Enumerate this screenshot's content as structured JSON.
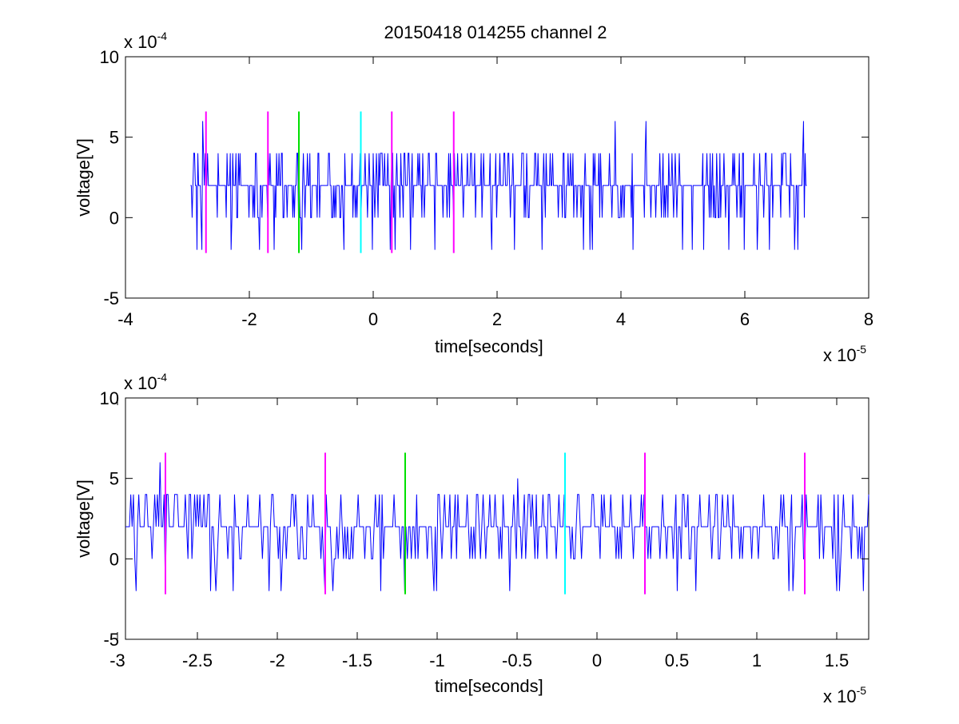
{
  "figure_title": "20150418 014255 channel 2",
  "colors": {
    "signal": "#0000ff",
    "magenta_marker": "#ff00ff",
    "green_marker": "#00e000",
    "cyan_marker": "#00ffff",
    "axes": "#000000",
    "background": "#ffffff"
  },
  "chart_data": [
    {
      "type": "line",
      "title": "20150418 014255 channel 2",
      "xlabel": "time[seconds]",
      "ylabel": "voltage[V]",
      "x_multiplier": "x 10",
      "x_multiplier_exp": "-5",
      "y_multiplier": "x 10",
      "y_multiplier_exp": "-4",
      "xlim": [
        -4,
        8
      ],
      "ylim": [
        -5,
        10
      ],
      "xticks": [
        -4,
        -2,
        0,
        2,
        4,
        6,
        8
      ],
      "xtick_labels": [
        "-4",
        "-2",
        "0",
        "2",
        "4",
        "6",
        "8"
      ],
      "yticks": [
        -5,
        0,
        5,
        10
      ],
      "ytick_labels": [
        "-5",
        "0",
        "5",
        "10"
      ],
      "grid": false,
      "signal": {
        "x_start": -2.95,
        "x_end": 7.0,
        "y_levels": [
          -2,
          0,
          2,
          4,
          6
        ],
        "typical_level": 2,
        "spikes": [
          {
            "x": -2.75,
            "y": 6
          },
          {
            "x": 3.9,
            "y": 6
          },
          {
            "x": 4.4,
            "y": 6
          },
          {
            "x": 6.95,
            "y": 6
          },
          {
            "x": -2.85,
            "y": -2
          },
          {
            "x": -2.3,
            "y": -2
          },
          {
            "x": -1.6,
            "y": -2
          },
          {
            "x": -1.15,
            "y": -2
          },
          {
            "x": 0.6,
            "y": -2
          },
          {
            "x": 1.0,
            "y": -2
          },
          {
            "x": 3.4,
            "y": -2
          },
          {
            "x": 4.2,
            "y": -2
          },
          {
            "x": 5.0,
            "y": -2
          },
          {
            "x": 6.2,
            "y": -2
          },
          {
            "x": 6.4,
            "y": -2
          },
          {
            "x": 6.8,
            "y": -2
          }
        ]
      },
      "markers": [
        {
          "x": -2.7,
          "color": "magenta"
        },
        {
          "x": -1.7,
          "color": "magenta"
        },
        {
          "x": -1.2,
          "color": "green"
        },
        {
          "x": -0.2,
          "color": "cyan"
        },
        {
          "x": 0.3,
          "color": "magenta"
        },
        {
          "x": 1.3,
          "color": "magenta"
        }
      ],
      "marker_range": [
        -2.2,
        6.6
      ]
    },
    {
      "type": "line",
      "xlabel": "time[seconds]",
      "ylabel": "voltage[V]",
      "x_multiplier": "x 10",
      "x_multiplier_exp": "-5",
      "y_multiplier": "x 10",
      "y_multiplier_exp": "-4",
      "xlim": [
        -2.95,
        1.7
      ],
      "ylim": [
        -5,
        10
      ],
      "xticks": [
        -3,
        -2.5,
        -2,
        -1.5,
        -1,
        -0.5,
        0,
        0.5,
        1,
        1.5
      ],
      "xtick_labels": [
        "-3",
        "-2.5",
        "-2",
        "-1.5",
        "-1",
        "-0.5",
        "0",
        "0.5",
        "1",
        "1.5"
      ],
      "yticks": [
        -5,
        0,
        5,
        10
      ],
      "ytick_labels": [
        "-5",
        "0",
        "5",
        "10"
      ],
      "grid": false,
      "signal": {
        "x_start": -2.95,
        "x_end": 1.7,
        "y_levels": [
          -2,
          0,
          2,
          4,
          6
        ],
        "typical_level": 2,
        "spikes": [
          {
            "x": -2.73,
            "y": 6
          },
          {
            "x": -0.5,
            "y": 5
          },
          {
            "x": -2.88,
            "y": -2
          },
          {
            "x": -2.42,
            "y": -2
          },
          {
            "x": -2.05,
            "y": -2
          },
          {
            "x": -1.98,
            "y": -2
          },
          {
            "x": -1.7,
            "y": -2
          },
          {
            "x": -1.35,
            "y": -2
          },
          {
            "x": -1.2,
            "y": -2
          },
          {
            "x": -1.02,
            "y": -2
          },
          {
            "x": -0.55,
            "y": -2
          },
          {
            "x": 0.5,
            "y": -2
          },
          {
            "x": 0.62,
            "y": -2
          },
          {
            "x": 1.2,
            "y": -2
          },
          {
            "x": 1.23,
            "y": -2
          }
        ]
      },
      "markers": [
        {
          "x": -2.7,
          "color": "magenta"
        },
        {
          "x": -1.7,
          "color": "magenta"
        },
        {
          "x": -1.2,
          "color": "green"
        },
        {
          "x": -0.2,
          "color": "cyan"
        },
        {
          "x": 0.3,
          "color": "magenta"
        },
        {
          "x": 1.3,
          "color": "magenta"
        }
      ],
      "marker_range": [
        -2.2,
        6.6
      ]
    }
  ]
}
